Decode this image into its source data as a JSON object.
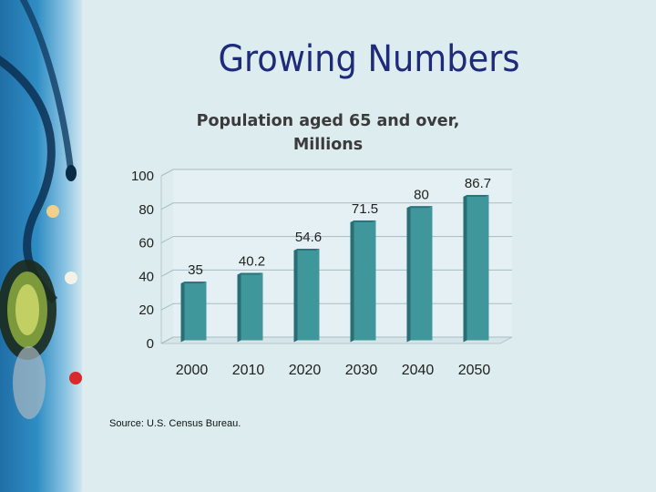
{
  "slide": {
    "title": "Growing Numbers",
    "source": "Source: U.S. Census Bureau."
  },
  "chart_data": {
    "type": "bar",
    "title_line1": "Population aged 65 and over,",
    "title_line2": "Millions",
    "categories": [
      "2000",
      "2010",
      "2020",
      "2030",
      "2040",
      "2050"
    ],
    "values": [
      35,
      40.2,
      54.6,
      71.5,
      80,
      86.7
    ],
    "data_labels": [
      "35",
      "40.2",
      "54.6",
      "71.5",
      "80",
      "86.7"
    ],
    "y_ticks": [
      "0",
      "20",
      "40",
      "60",
      "80",
      "100"
    ],
    "ylim": [
      0,
      100
    ],
    "grid": true,
    "legend": "none",
    "bar_color": "#3f979c"
  }
}
